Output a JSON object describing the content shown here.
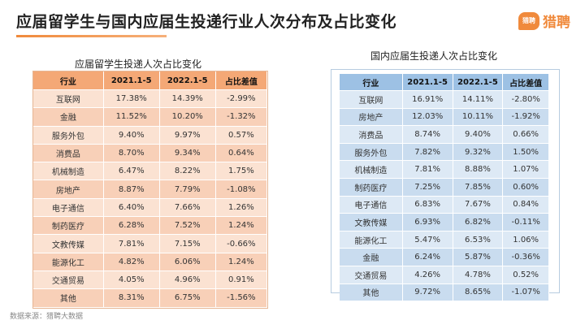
{
  "header": {
    "title": "应届留学生与国内应届生投递行业人次分布及占比变化",
    "logo_mark": "猎聘",
    "logo_text": "猎聘"
  },
  "left_table": {
    "subtitle": "应届留学生投递人次占比变化",
    "columns": [
      "行业",
      "2021.1-5",
      "2022.1-5",
      "占比差值"
    ],
    "rows": [
      [
        "互联网",
        "17.38%",
        "14.39%",
        "-2.99%"
      ],
      [
        "金融",
        "11.52%",
        "10.20%",
        "-1.32%"
      ],
      [
        "服务外包",
        "9.40%",
        "9.97%",
        "0.57%"
      ],
      [
        "消费品",
        "8.70%",
        "9.34%",
        "0.64%"
      ],
      [
        "机械制造",
        "6.47%",
        "8.22%",
        "1.75%"
      ],
      [
        "房地产",
        "8.87%",
        "7.79%",
        "-1.08%"
      ],
      [
        "电子通信",
        "6.40%",
        "7.66%",
        "1.26%"
      ],
      [
        "制药医疗",
        "6.28%",
        "7.52%",
        "1.24%"
      ],
      [
        "文教传媒",
        "7.81%",
        "7.15%",
        "-0.66%"
      ],
      [
        "能源化工",
        "4.82%",
        "6.06%",
        "1.24%"
      ],
      [
        "交通贸易",
        "4.05%",
        "4.96%",
        "0.91%"
      ],
      [
        "其他",
        "8.31%",
        "6.75%",
        "-1.56%"
      ]
    ]
  },
  "right_table": {
    "subtitle": "国内应届生投递人次占比变化",
    "columns": [
      "行业",
      "2021.1-5",
      "2022.1-5",
      "占比差值"
    ],
    "rows": [
      [
        "互联网",
        "16.91%",
        "14.11%",
        "-2.80%"
      ],
      [
        "房地产",
        "12.03%",
        "10.11%",
        "-1.92%"
      ],
      [
        "消费品",
        "8.74%",
        "9.40%",
        "0.66%"
      ],
      [
        "服务外包",
        "7.82%",
        "9.32%",
        "1.50%"
      ],
      [
        "机械制造",
        "7.81%",
        "8.88%",
        "1.07%"
      ],
      [
        "制药医疗",
        "7.25%",
        "7.85%",
        "0.60%"
      ],
      [
        "电子通信",
        "6.83%",
        "7.67%",
        "0.84%"
      ],
      [
        "文教传媒",
        "6.93%",
        "6.82%",
        "-0.11%"
      ],
      [
        "能源化工",
        "5.47%",
        "6.53%",
        "1.06%"
      ],
      [
        "金融",
        "6.24%",
        "5.87%",
        "-0.36%"
      ],
      [
        "交通贸易",
        "4.26%",
        "4.78%",
        "0.52%"
      ],
      [
        "其他",
        "9.72%",
        "8.65%",
        "-1.07%"
      ]
    ]
  },
  "footer": {
    "source": "数据来源：猎聘大数据"
  }
}
